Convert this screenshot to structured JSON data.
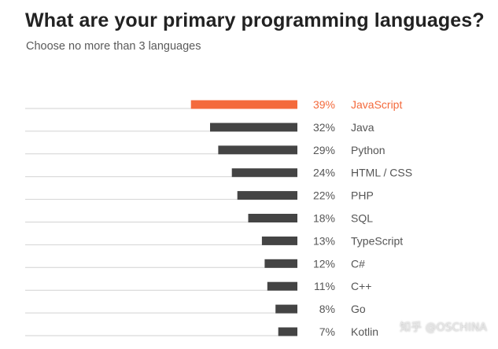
{
  "header": {
    "title": "What are your primary programming languages?",
    "subtitle": "Choose no more than 3 languages"
  },
  "colors": {
    "highlight": "#f46a3c",
    "bar": "#444444",
    "axis_line": "#d2d2d2",
    "label": "#555555"
  },
  "chart_data": {
    "type": "bar",
    "orientation": "horizontal",
    "unit": "%",
    "categories": [
      "JavaScript",
      "Java",
      "Python",
      "HTML / CSS",
      "PHP",
      "SQL",
      "TypeScript",
      "C#",
      "C++",
      "Go",
      "Kotlin"
    ],
    "values": [
      39,
      32,
      29,
      24,
      22,
      18,
      13,
      12,
      11,
      8,
      7
    ],
    "highlighted_index": 0,
    "title": "What are your primary programming languages?",
    "subtitle": "Choose no more than 3 languages",
    "xlabel": "",
    "ylabel": ""
  },
  "watermark": "知乎 @OSCHINA"
}
